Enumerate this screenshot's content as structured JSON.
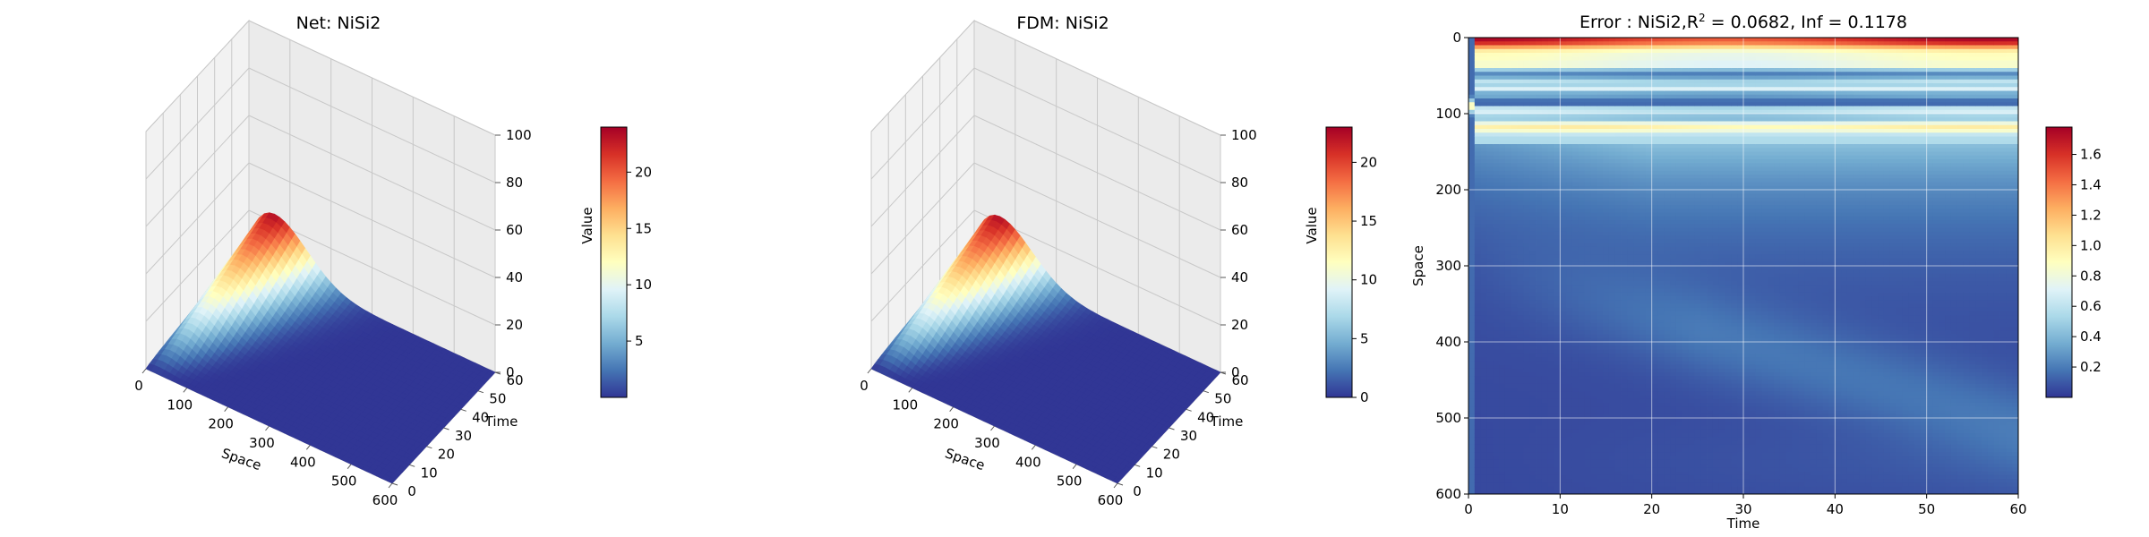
{
  "chart_data": [
    {
      "type": "surface3d",
      "title": "Net: NiSi2",
      "xlabel": "Space",
      "ylabel": "Time",
      "zlabel": "Value",
      "xlim": [
        0,
        600
      ],
      "ylim": [
        0,
        60
      ],
      "zlim": [
        0,
        100
      ],
      "x_ticks": [
        0,
        100,
        200,
        300,
        400,
        500,
        600
      ],
      "y_ticks": [
        0,
        10,
        20,
        30,
        40,
        50,
        60
      ],
      "z_ticks": [
        0,
        20,
        40,
        60,
        80,
        100
      ],
      "peak_value": 24,
      "peak_space": 55,
      "peak_time": 60,
      "colormap": "RdYlBu_r",
      "colorbar": {
        "min": 0,
        "max": 24,
        "ticks": [
          5,
          10,
          15,
          20
        ]
      }
    },
    {
      "type": "surface3d",
      "title": "FDM: NiSi2",
      "xlabel": "Space",
      "ylabel": "Time",
      "zlabel": "Value",
      "xlim": [
        0,
        600
      ],
      "ylim": [
        0,
        60
      ],
      "zlim": [
        0,
        100
      ],
      "x_ticks": [
        0,
        100,
        200,
        300,
        400,
        500,
        600
      ],
      "y_ticks": [
        0,
        10,
        20,
        30,
        40,
        50,
        60
      ],
      "z_ticks": [
        0,
        20,
        40,
        60,
        80,
        100
      ],
      "peak_value": 23,
      "peak_space": 55,
      "peak_time": 60,
      "colormap": "RdYlBu_r",
      "colorbar": {
        "min": 0,
        "max": 23,
        "ticks": [
          0,
          5,
          10,
          15,
          20
        ]
      }
    },
    {
      "type": "heatmap",
      "title": "Error : NiSi2,R",
      "title_sup": "2",
      "title_rest": " = 0.0682, Inf = 0.1178",
      "xlabel": "Time",
      "ylabel": "Space",
      "xlim": [
        0,
        60
      ],
      "ylim": [
        600,
        0
      ],
      "x_ticks": [
        0,
        10,
        20,
        30,
        40,
        50,
        60
      ],
      "y_ticks": [
        0,
        100,
        200,
        300,
        400,
        500,
        600
      ],
      "grid": true,
      "colormap": "RdYlBu_r",
      "colorbar": {
        "min": 0,
        "max": 1.78,
        "ticks": [
          "0.2",
          "0.4",
          "0.6",
          "0.8",
          "1.0",
          "1.2",
          "1.4",
          "1.6"
        ]
      }
    }
  ],
  "colors": {
    "cmap": [
      "#313695",
      "#4575b4",
      "#74add1",
      "#abd9e9",
      "#e0f3f8",
      "#ffffbf",
      "#fee090",
      "#fdae61",
      "#f46d43",
      "#d73027",
      "#a50026"
    ],
    "pane": "#f2f2f2",
    "grid": "#c8c8c8"
  }
}
